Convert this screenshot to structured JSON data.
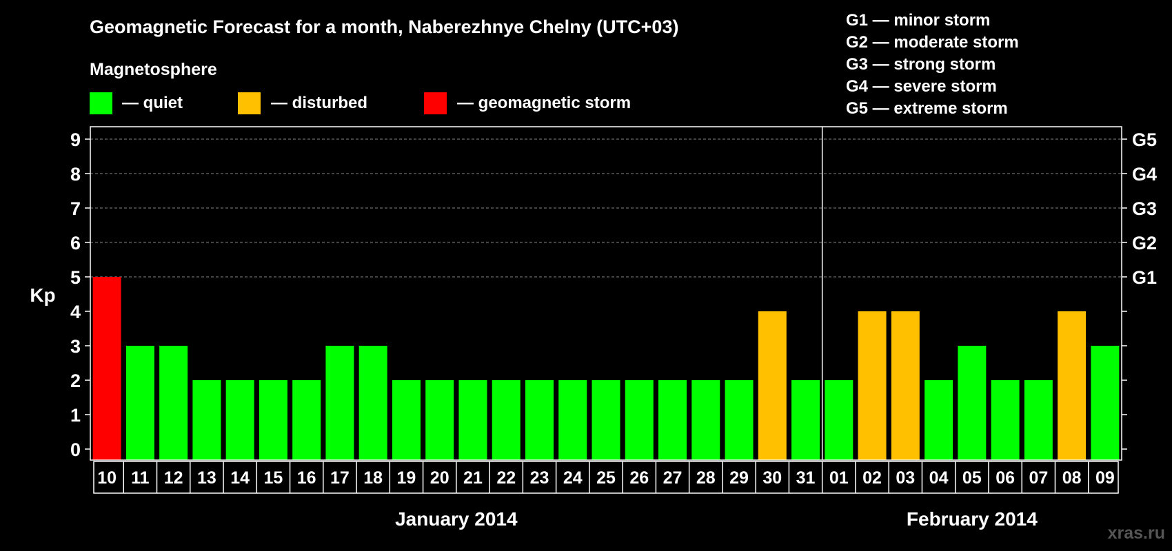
{
  "title": "Geomagnetic Forecast for a month, Naberezhnye Chelny (UTC+03)",
  "legend": {
    "heading": "Magnetosphere",
    "items": [
      {
        "label": "— quiet",
        "color": "#00ff00"
      },
      {
        "label": "— disturbed",
        "color": "#ffc000"
      },
      {
        "label": "— geomagnetic storm",
        "color": "#ff0000"
      }
    ]
  },
  "storm_scale": [
    "G1 — minor storm",
    "G2 — moderate storm",
    "G3 — strong storm",
    "G4 — severe storm",
    "G5 — extreme storm"
  ],
  "watermark": "xras.ru",
  "chart_data": {
    "type": "bar",
    "title": "Geomagnetic Forecast for a month, Naberezhnye Chelny (UTC+03)",
    "ylabel": "Kp",
    "ylim": [
      0,
      9
    ],
    "yticks": [
      "0",
      "1",
      "2",
      "3",
      "4",
      "5",
      "6",
      "7",
      "8",
      "9"
    ],
    "right_axis": [
      {
        "kp": 5,
        "label": "G1"
      },
      {
        "kp": 6,
        "label": "G2"
      },
      {
        "kp": 7,
        "label": "G3"
      },
      {
        "kp": 8,
        "label": "G4"
      },
      {
        "kp": 9,
        "label": "G5"
      }
    ],
    "categories": [
      "10",
      "11",
      "12",
      "13",
      "14",
      "15",
      "16",
      "17",
      "18",
      "19",
      "20",
      "21",
      "22",
      "23",
      "24",
      "25",
      "26",
      "27",
      "28",
      "29",
      "30",
      "31",
      "01",
      "02",
      "03",
      "04",
      "05",
      "06",
      "07",
      "08",
      "09"
    ],
    "values": [
      5,
      3,
      3,
      2,
      2,
      2,
      2,
      3,
      3,
      2,
      2,
      2,
      2,
      2,
      2,
      2,
      2,
      2,
      2,
      2,
      4,
      2,
      2,
      4,
      4,
      2,
      3,
      2,
      2,
      4,
      3
    ],
    "levels": [
      "storm",
      "quiet",
      "quiet",
      "quiet",
      "quiet",
      "quiet",
      "quiet",
      "quiet",
      "quiet",
      "quiet",
      "quiet",
      "quiet",
      "quiet",
      "quiet",
      "quiet",
      "quiet",
      "quiet",
      "quiet",
      "quiet",
      "quiet",
      "disturbed",
      "quiet",
      "quiet",
      "disturbed",
      "disturbed",
      "quiet",
      "quiet",
      "quiet",
      "quiet",
      "disturbed",
      "quiet"
    ],
    "level_colors": {
      "quiet": "#00ff00",
      "disturbed": "#ffc000",
      "storm": "#ff0000"
    },
    "months": [
      {
        "label": "January 2014",
        "start": 0,
        "end": 21
      },
      {
        "label": "February 2014",
        "start": 22,
        "end": 30
      }
    ],
    "month_divider_after": 21
  }
}
